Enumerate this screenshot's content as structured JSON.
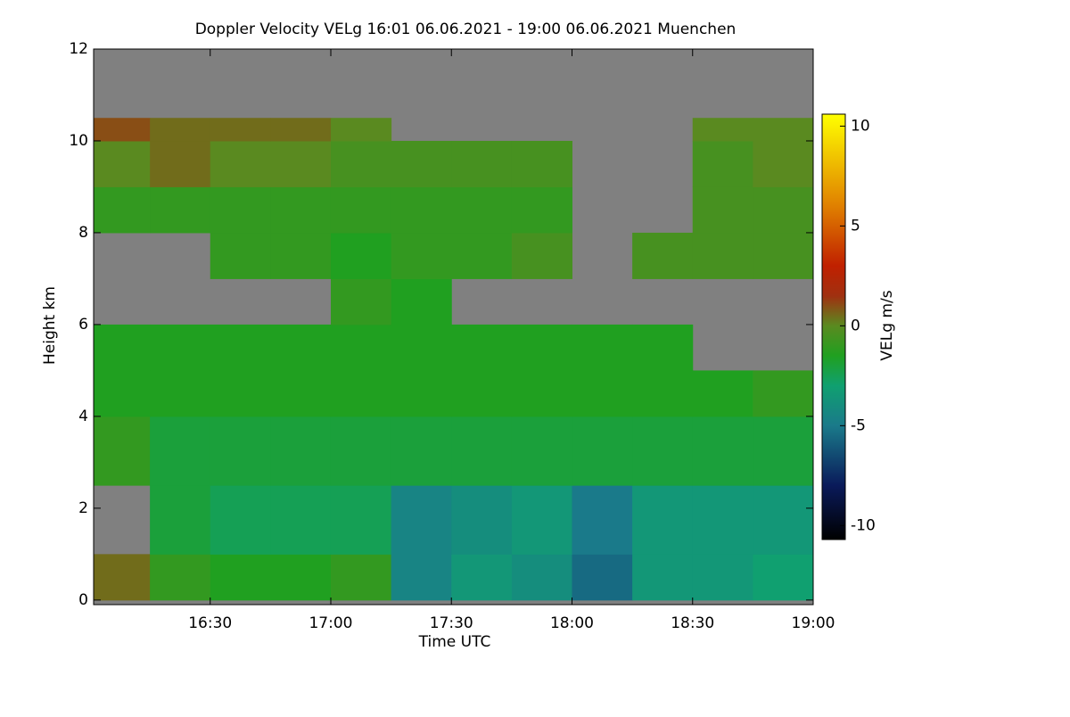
{
  "chart_data": {
    "type": "heatmap",
    "title": "Doppler Velocity VELg   16:01 06.06.2021 - 19:00 06.06.2021 Muenchen",
    "x_label": "Time UTC",
    "y_label": "Height km",
    "xlim": [
      "16:01",
      "19:00"
    ],
    "xticks": [
      "16:30",
      "17:00",
      "17:30",
      "18:00",
      "18:30",
      "19:00"
    ],
    "ylim": [
      -0.1,
      12
    ],
    "yticks": [
      0,
      2,
      4,
      6,
      8,
      10,
      12
    ],
    "x_edges": [
      "16:01",
      "16:15",
      "16:30",
      "16:45",
      "17:00",
      "17:15",
      "17:30",
      "17:45",
      "18:00",
      "18:15",
      "18:30",
      "18:45",
      "19:00"
    ],
    "y_edges": [
      0,
      1,
      2.5,
      4,
      5,
      6,
      7,
      8,
      9,
      10,
      10.5
    ],
    "values": [
      [
        0.5,
        -1,
        -1.5,
        -1.5,
        -1,
        -4.5,
        -3.5,
        -4,
        -5.5,
        -3.5,
        -3.5,
        -3
      ],
      [
        null,
        -2,
        -2.5,
        -2.5,
        -2.5,
        -4.5,
        -4,
        -3.5,
        -5,
        -3.5,
        -3.5,
        -3.5
      ],
      [
        -1,
        -2,
        -2,
        -2,
        -2,
        -2,
        -2,
        -2,
        -2,
        -2,
        -2,
        -2
      ],
      [
        -1.5,
        -1.5,
        -1.5,
        -1.5,
        -1.5,
        -1.5,
        -1.5,
        -1.5,
        -1.5,
        -1.5,
        -1.5,
        -1
      ],
      [
        -1.5,
        -1.5,
        -1.5,
        -1.5,
        -1.5,
        -1.5,
        -1.5,
        -1.5,
        -1.5,
        -1.5,
        null,
        null
      ],
      [
        null,
        null,
        null,
        null,
        -1,
        -1.5,
        null,
        null,
        null,
        null,
        null,
        null
      ],
      [
        null,
        null,
        -1,
        -1,
        -1.5,
        -1,
        -1,
        -0.5,
        null,
        -0.5,
        -0.5,
        -0.5
      ],
      [
        -1,
        -1,
        -1,
        -1,
        -1,
        -1,
        -1,
        -1,
        null,
        null,
        -0.5,
        -0.5
      ],
      [
        0,
        0.5,
        0,
        0,
        -0.5,
        -0.5,
        -0.5,
        -0.5,
        null,
        null,
        -0.5,
        0
      ],
      [
        1,
        0.5,
        0.5,
        0.5,
        0,
        null,
        null,
        null,
        null,
        null,
        0,
        0
      ]
    ],
    "background_color": "#808080",
    "colorbar": {
      "label": "VELg m/s",
      "lim": [
        -10.7,
        10.6
      ],
      "ticks": [
        10,
        5,
        0,
        -5,
        -10
      ]
    },
    "colormap": [
      {
        "value": -10.7,
        "color": "#000000"
      },
      {
        "value": -8,
        "color": "#0a1a5a"
      },
      {
        "value": -5,
        "color": "#1a7a8a"
      },
      {
        "value": -3,
        "color": "#10a070"
      },
      {
        "value": -1.5,
        "color": "#20a020"
      },
      {
        "value": 0,
        "color": "#5a8a20"
      },
      {
        "value": 1.5,
        "color": "#a03010"
      },
      {
        "value": 3,
        "color": "#c02000"
      },
      {
        "value": 6,
        "color": "#e08000"
      },
      {
        "value": 10.6,
        "color": "#ffff00"
      }
    ]
  }
}
